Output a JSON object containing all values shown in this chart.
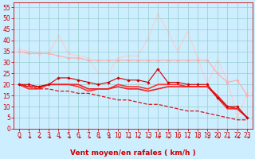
{
  "background_color": "#cceeff",
  "grid_color": "#99cccc",
  "xlabel": "Vent moyen/en rafales ( km/h )",
  "xlabel_color": "#cc0000",
  "xlabel_fontsize": 6.5,
  "tick_color": "#cc0000",
  "tick_fontsize": 5.5,
  "ylim": [
    0,
    57
  ],
  "yticks": [
    0,
    5,
    10,
    15,
    20,
    25,
    30,
    35,
    40,
    45,
    50,
    55
  ],
  "xlim": [
    -0.5,
    23.5
  ],
  "xticks": [
    0,
    1,
    2,
    3,
    4,
    5,
    6,
    7,
    8,
    9,
    10,
    11,
    12,
    13,
    14,
    15,
    16,
    17,
    18,
    19,
    20,
    21,
    22,
    23
  ],
  "x": [
    0,
    1,
    2,
    3,
    4,
    5,
    6,
    7,
    8,
    9,
    10,
    11,
    12,
    13,
    14,
    15,
    16,
    17,
    18,
    19,
    20,
    21,
    22,
    23
  ],
  "series": [
    {
      "y": [
        35,
        34,
        34,
        34,
        33,
        32,
        32,
        31,
        31,
        31,
        31,
        31,
        31,
        31,
        31,
        31,
        31,
        31,
        31,
        31,
        25,
        21,
        22,
        15
      ],
      "color": "#ffaaaa",
      "linewidth": 0.8,
      "marker": "D",
      "markersize": 1.8,
      "zorder": 2,
      "linestyle": "-"
    },
    {
      "y": [
        36,
        35,
        34,
        34,
        42,
        34,
        33,
        32,
        25,
        25,
        32,
        33,
        33,
        41,
        52,
        44,
        35,
        44,
        32,
        20,
        31,
        22,
        5,
        16
      ],
      "color": "#ffcccc",
      "linewidth": 0.8,
      "marker": "D",
      "markersize": 1.8,
      "zorder": 1,
      "linestyle": "-"
    },
    {
      "y": [
        20,
        20,
        19,
        20,
        23,
        23,
        22,
        21,
        20,
        21,
        23,
        22,
        22,
        21,
        27,
        21,
        21,
        20,
        20,
        20,
        14,
        10,
        10,
        5
      ],
      "color": "#cc0000",
      "linewidth": 0.8,
      "marker": "D",
      "markersize": 1.8,
      "zorder": 4,
      "linestyle": "-"
    },
    {
      "y": [
        20,
        18,
        18,
        20,
        20,
        20,
        19,
        17,
        18,
        18,
        20,
        19,
        19,
        18,
        20,
        20,
        20,
        19,
        19,
        19,
        14,
        9,
        9,
        5
      ],
      "color": "#ff3333",
      "linewidth": 1.2,
      "marker": null,
      "markersize": 0,
      "zorder": 3,
      "linestyle": "-"
    },
    {
      "y": [
        20,
        19,
        19,
        20,
        20,
        20,
        20,
        18,
        18,
        18,
        19,
        18,
        18,
        17,
        18,
        19,
        19,
        19,
        19,
        19,
        15,
        10,
        9,
        5
      ],
      "color": "#ee2222",
      "linewidth": 1.2,
      "marker": null,
      "markersize": 0,
      "zorder": 3,
      "linestyle": "-"
    },
    {
      "y": [
        20,
        19,
        18,
        18,
        17,
        17,
        16,
        16,
        15,
        14,
        13,
        13,
        12,
        11,
        11,
        10,
        9,
        8,
        8,
        7,
        6,
        5,
        4,
        4
      ],
      "color": "#dd1111",
      "linewidth": 0.9,
      "marker": null,
      "markersize": 0,
      "zorder": 3,
      "linestyle": "--"
    }
  ],
  "arrow_color": "#cc0000"
}
